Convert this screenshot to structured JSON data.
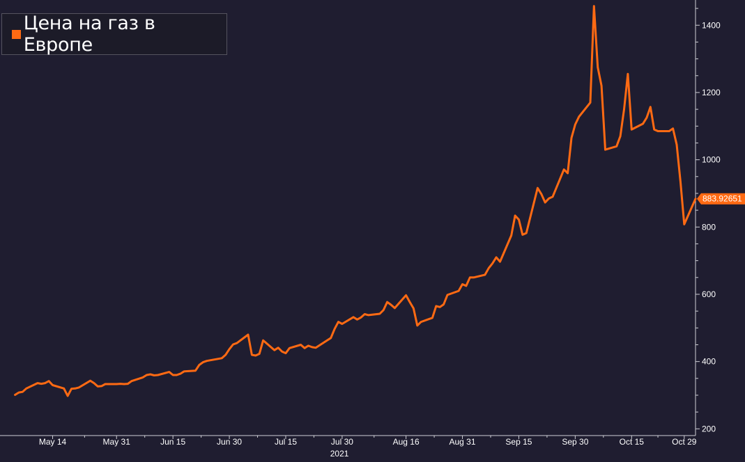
{
  "legend": {
    "label": "Цена на газ в Европе",
    "color": "#ff6a13"
  },
  "chart_data": {
    "type": "line",
    "title": "",
    "xlabel": "",
    "ylabel": "",
    "year_label": "2021",
    "ylim": [
      180,
      1475
    ],
    "y_ticks": [
      200,
      400,
      600,
      800,
      1000,
      1200,
      1400
    ],
    "x_range": [
      "2021-04-30",
      "2021-11-01"
    ],
    "x_ticks": [
      {
        "date": "2021-05-14",
        "label": "May 14"
      },
      {
        "date": "2021-05-31",
        "label": "May 31"
      },
      {
        "date": "2021-06-15",
        "label": "Jun 15"
      },
      {
        "date": "2021-06-30",
        "label": "Jun 30"
      },
      {
        "date": "2021-07-15",
        "label": "Jul 15"
      },
      {
        "date": "2021-07-30",
        "label": "Jul 30"
      },
      {
        "date": "2021-08-16",
        "label": "Aug 16"
      },
      {
        "date": "2021-08-31",
        "label": "Aug 31"
      },
      {
        "date": "2021-09-15",
        "label": "Sep 15"
      },
      {
        "date": "2021-09-30",
        "label": "Sep 30"
      },
      {
        "date": "2021-10-15",
        "label": "Oct 15"
      },
      {
        "date": "2021-10-29",
        "label": "Oct 29"
      }
    ],
    "last_value_label": "883.92651",
    "grid": false,
    "series": [
      {
        "name": "Цена на газ в Европе",
        "color": "#ff6a13",
        "points": [
          [
            "2021-05-04",
            301
          ],
          [
            "2021-05-05",
            308
          ],
          [
            "2021-05-06",
            310
          ],
          [
            "2021-05-07",
            320
          ],
          [
            "2021-05-10",
            336
          ],
          [
            "2021-05-11",
            334
          ],
          [
            "2021-05-12",
            336
          ],
          [
            "2021-05-13",
            342
          ],
          [
            "2021-05-14",
            330
          ],
          [
            "2021-05-17",
            320
          ],
          [
            "2021-05-18",
            298
          ],
          [
            "2021-05-19",
            319
          ],
          [
            "2021-05-20",
            320
          ],
          [
            "2021-05-21",
            323
          ],
          [
            "2021-05-24",
            343
          ],
          [
            "2021-05-25",
            336
          ],
          [
            "2021-05-26",
            326
          ],
          [
            "2021-05-27",
            327
          ],
          [
            "2021-05-28",
            333
          ],
          [
            "2021-05-31",
            333
          ],
          [
            "2021-06-01",
            334
          ],
          [
            "2021-06-02",
            333
          ],
          [
            "2021-06-03",
            334
          ],
          [
            "2021-06-04",
            342
          ],
          [
            "2021-06-07",
            353
          ],
          [
            "2021-06-08",
            360
          ],
          [
            "2021-06-09",
            362
          ],
          [
            "2021-06-10",
            359
          ],
          [
            "2021-06-11",
            360
          ],
          [
            "2021-06-14",
            369
          ],
          [
            "2021-06-15",
            360
          ],
          [
            "2021-06-16",
            360
          ],
          [
            "2021-06-17",
            364
          ],
          [
            "2021-06-18",
            371
          ],
          [
            "2021-06-21",
            373
          ],
          [
            "2021-06-22",
            390
          ],
          [
            "2021-06-23",
            398
          ],
          [
            "2021-06-24",
            402
          ],
          [
            "2021-06-25",
            404
          ],
          [
            "2021-06-28",
            410
          ],
          [
            "2021-06-29",
            420
          ],
          [
            "2021-06-30",
            437
          ],
          [
            "2021-07-01",
            451
          ],
          [
            "2021-07-02",
            455
          ],
          [
            "2021-07-05",
            480
          ],
          [
            "2021-07-06",
            420
          ],
          [
            "2021-07-07",
            418
          ],
          [
            "2021-07-08",
            423
          ],
          [
            "2021-07-09",
            463
          ],
          [
            "2021-07-12",
            434
          ],
          [
            "2021-07-13",
            441
          ],
          [
            "2021-07-14",
            430
          ],
          [
            "2021-07-15",
            425
          ],
          [
            "2021-07-16",
            440
          ],
          [
            "2021-07-19",
            450
          ],
          [
            "2021-07-20",
            440
          ],
          [
            "2021-07-21",
            447
          ],
          [
            "2021-07-22",
            443
          ],
          [
            "2021-07-23",
            441
          ],
          [
            "2021-07-26",
            463
          ],
          [
            "2021-07-27",
            470
          ],
          [
            "2021-07-28",
            497
          ],
          [
            "2021-07-29",
            518
          ],
          [
            "2021-07-30",
            512
          ],
          [
            "2021-08-02",
            532
          ],
          [
            "2021-08-03",
            525
          ],
          [
            "2021-08-04",
            531
          ],
          [
            "2021-08-05",
            541
          ],
          [
            "2021-08-06",
            538
          ],
          [
            "2021-08-09",
            542
          ],
          [
            "2021-08-10",
            553
          ],
          [
            "2021-08-11",
            577
          ],
          [
            "2021-08-12",
            569
          ],
          [
            "2021-08-13",
            559
          ],
          [
            "2021-08-16",
            597
          ],
          [
            "2021-08-17",
            577
          ],
          [
            "2021-08-18",
            558
          ],
          [
            "2021-08-19",
            507
          ],
          [
            "2021-08-20",
            518
          ],
          [
            "2021-08-23",
            530
          ],
          [
            "2021-08-24",
            565
          ],
          [
            "2021-08-25",
            562
          ],
          [
            "2021-08-26",
            570
          ],
          [
            "2021-08-27",
            598
          ],
          [
            "2021-08-30",
            610
          ],
          [
            "2021-08-31",
            630
          ],
          [
            "2021-09-01",
            625
          ],
          [
            "2021-09-02",
            650
          ],
          [
            "2021-09-03",
            650
          ],
          [
            "2021-09-06",
            658
          ],
          [
            "2021-09-07",
            678
          ],
          [
            "2021-09-08",
            692
          ],
          [
            "2021-09-09",
            710
          ],
          [
            "2021-09-10",
            697
          ],
          [
            "2021-09-13",
            775
          ],
          [
            "2021-09-14",
            834
          ],
          [
            "2021-09-15",
            822
          ],
          [
            "2021-09-16",
            777
          ],
          [
            "2021-09-17",
            782
          ],
          [
            "2021-09-20",
            916
          ],
          [
            "2021-09-21",
            898
          ],
          [
            "2021-09-22",
            873
          ],
          [
            "2021-09-23",
            885
          ],
          [
            "2021-09-24",
            890
          ],
          [
            "2021-09-27",
            971
          ],
          [
            "2021-09-28",
            960
          ],
          [
            "2021-09-29",
            1065
          ],
          [
            "2021-09-30",
            1105
          ],
          [
            "2021-10-01",
            1128
          ],
          [
            "2021-10-04",
            1170
          ],
          [
            "2021-10-05",
            1457
          ],
          [
            "2021-10-06",
            1275
          ],
          [
            "2021-10-07",
            1220
          ],
          [
            "2021-10-08",
            1030
          ],
          [
            "2021-10-11",
            1040
          ],
          [
            "2021-10-12",
            1070
          ],
          [
            "2021-10-13",
            1150
          ],
          [
            "2021-10-14",
            1255
          ],
          [
            "2021-10-15",
            1090
          ],
          [
            "2021-10-18",
            1107
          ],
          [
            "2021-10-19",
            1125
          ],
          [
            "2021-10-20",
            1157
          ],
          [
            "2021-10-21",
            1090
          ],
          [
            "2021-10-22",
            1085
          ],
          [
            "2021-10-25",
            1085
          ],
          [
            "2021-10-26",
            1093
          ],
          [
            "2021-10-27",
            1045
          ],
          [
            "2021-10-28",
            935
          ],
          [
            "2021-10-29",
            808
          ],
          [
            "2021-11-01",
            884
          ]
        ]
      }
    ]
  }
}
